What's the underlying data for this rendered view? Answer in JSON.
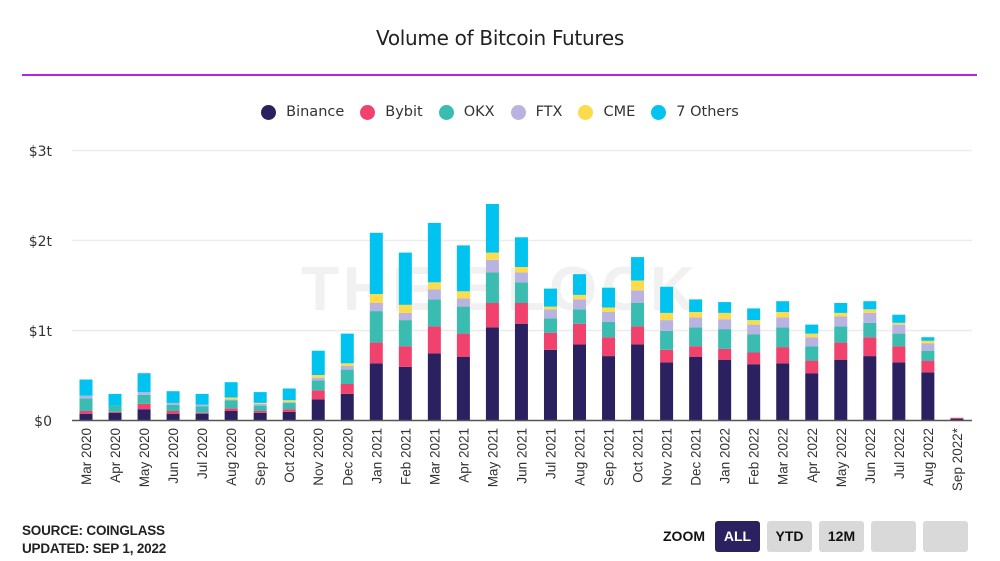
{
  "title": "Volume of Bitcoin Futures",
  "footer": {
    "source": "SOURCE: COINGLASS",
    "updated": "UPDATED: SEP 1, 2022"
  },
  "zoom": {
    "label": "ZOOM",
    "buttons": [
      {
        "label": "ALL",
        "active": true
      },
      {
        "label": "YTD",
        "active": false
      },
      {
        "label": "12M",
        "active": false
      },
      {
        "label": "",
        "active": false
      },
      {
        "label": "",
        "active": false
      }
    ]
  },
  "watermark": "THE BLOCK",
  "chart_data": {
    "type": "bar",
    "stacked": true,
    "title": "Volume of Bitcoin Futures",
    "xlabel": "",
    "ylabel": "",
    "ylim": [
      0,
      3
    ],
    "yunit": "trillion USD",
    "yticks": [
      {
        "value": 0,
        "label": "$0"
      },
      {
        "value": 1,
        "label": "$1t"
      },
      {
        "value": 2,
        "label": "$2t"
      },
      {
        "value": 3,
        "label": "$3t"
      }
    ],
    "grid": true,
    "legend_position": "top-center",
    "categories": [
      "Mar 2020",
      "Apr 2020",
      "May 2020",
      "Jun 2020",
      "Jul 2020",
      "Aug 2020",
      "Sep 2020",
      "Oct 2020",
      "Nov 2020",
      "Dec 2020",
      "Jan 2021",
      "Feb 2021",
      "Mar 2021",
      "Apr 2021",
      "May 2021",
      "Jun 2021",
      "Jul 2021",
      "Aug 2021",
      "Sep 2021",
      "Oct 2021",
      "Nov 2021",
      "Dec 2021",
      "Jan 2022",
      "Feb 2022",
      "Mar 2022",
      "Apr 2022",
      "May 2022",
      "Jun 2022",
      "Jul 2022",
      "Aug 2022",
      "Sep 2022*"
    ],
    "series": [
      {
        "name": "Binance",
        "color": "#2b2160",
        "values": [
          0.07,
          0.08,
          0.12,
          0.07,
          0.07,
          0.1,
          0.08,
          0.09,
          0.23,
          0.29,
          0.63,
          0.59,
          0.74,
          0.7,
          1.03,
          1.07,
          0.78,
          0.84,
          0.71,
          0.84,
          0.64,
          0.7,
          0.67,
          0.62,
          0.63,
          0.52,
          0.67,
          0.71,
          0.64,
          0.53,
          0.015
        ]
      },
      {
        "name": "Bybit",
        "color": "#f0426c",
        "values": [
          0.03,
          0.01,
          0.06,
          0.03,
          0.01,
          0.03,
          0.02,
          0.03,
          0.1,
          0.11,
          0.23,
          0.23,
          0.3,
          0.26,
          0.27,
          0.23,
          0.19,
          0.23,
          0.21,
          0.2,
          0.14,
          0.12,
          0.12,
          0.13,
          0.18,
          0.14,
          0.19,
          0.21,
          0.18,
          0.13,
          0.01
        ]
      },
      {
        "name": "OKX",
        "color": "#3bbcb0",
        "values": [
          0.14,
          0.07,
          0.1,
          0.07,
          0.07,
          0.09,
          0.06,
          0.07,
          0.11,
          0.16,
          0.35,
          0.29,
          0.3,
          0.3,
          0.34,
          0.23,
          0.16,
          0.16,
          0.17,
          0.26,
          0.21,
          0.21,
          0.22,
          0.2,
          0.22,
          0.16,
          0.18,
          0.16,
          0.14,
          0.11,
          0.0
        ]
      },
      {
        "name": "FTX",
        "color": "#b9b3e1",
        "values": [
          0.03,
          0.0,
          0.03,
          0.02,
          0.02,
          0.01,
          0.02,
          0.01,
          0.03,
          0.04,
          0.09,
          0.08,
          0.11,
          0.09,
          0.14,
          0.11,
          0.1,
          0.11,
          0.11,
          0.14,
          0.12,
          0.11,
          0.11,
          0.11,
          0.11,
          0.1,
          0.11,
          0.11,
          0.1,
          0.08,
          0.0
        ]
      },
      {
        "name": "CME",
        "color": "#fcdc4d",
        "values": [
          0.0,
          0.0,
          0.0,
          0.0,
          0.0,
          0.02,
          0.01,
          0.02,
          0.03,
          0.03,
          0.1,
          0.09,
          0.08,
          0.08,
          0.08,
          0.06,
          0.03,
          0.05,
          0.05,
          0.11,
          0.08,
          0.06,
          0.07,
          0.05,
          0.06,
          0.04,
          0.04,
          0.04,
          0.02,
          0.03,
          0.0
        ]
      },
      {
        "name": "7 Others",
        "color": "#00c3f0",
        "values": [
          0.18,
          0.13,
          0.21,
          0.13,
          0.12,
          0.17,
          0.12,
          0.13,
          0.27,
          0.33,
          0.68,
          0.58,
          0.66,
          0.51,
          0.54,
          0.33,
          0.2,
          0.23,
          0.22,
          0.26,
          0.29,
          0.14,
          0.12,
          0.13,
          0.12,
          0.1,
          0.11,
          0.09,
          0.09,
          0.04,
          0.0
        ]
      }
    ]
  }
}
